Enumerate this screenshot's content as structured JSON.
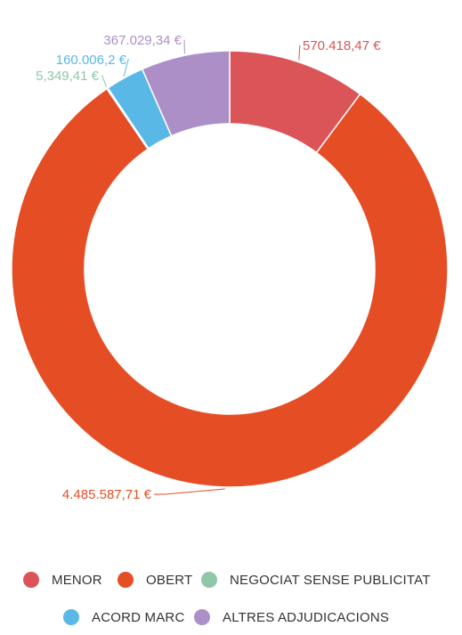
{
  "chart_data": {
    "type": "pie",
    "donut": true,
    "categories": [
      "MENOR",
      "OBERT",
      "NEGOCIAT SENSE PUBLICITAT",
      "ACORD MARC",
      "ALTRES ADJUDICACIONS"
    ],
    "values": [
      570418.47,
      4485587.71,
      5349.41,
      160006.2,
      367029.34
    ],
    "value_labels": [
      "570.418,47 €",
      "4.485.587,71 €",
      "5,349,41 €",
      "160.006,2 €",
      "367.029,34 €"
    ],
    "colors": [
      "#db5458",
      "#e54e25",
      "#8fc7a7",
      "#5ab8e6",
      "#ac8fc6"
    ],
    "legend_position": "bottom"
  }
}
